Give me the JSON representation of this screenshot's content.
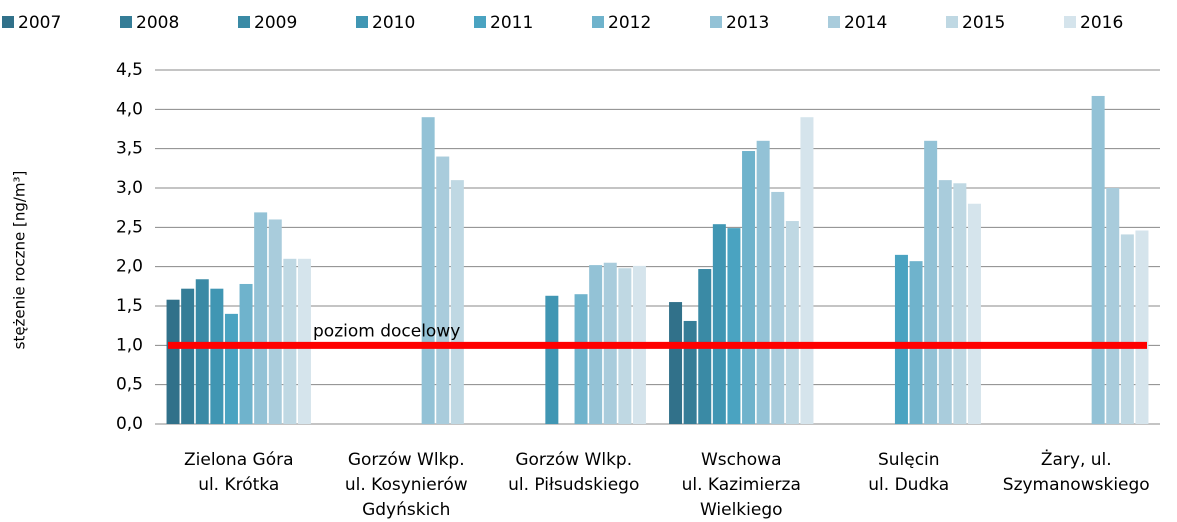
{
  "chart_data": {
    "type": "bar",
    "y_label": "stężenie roczne [ng/m³]",
    "categories": [
      [
        "Zielona Góra",
        "ul. Krótka"
      ],
      [
        "Gorzów Wlkp.",
        "ul. Kosynierów",
        "Gdyńskich"
      ],
      [
        "Gorzów Wlkp.",
        "ul. Piłsudskiego"
      ],
      [
        "Wschowa",
        "ul. Kazimierza",
        "Wielkiego"
      ],
      [
        "Sulęcin",
        "ul. Dudka"
      ],
      [
        "Żary, ul.",
        "Szymanowskiego"
      ]
    ],
    "series": [
      {
        "name": "2007",
        "color": "#31718a",
        "values": [
          1.58,
          null,
          null,
          1.55,
          null,
          null
        ]
      },
      {
        "name": "2008",
        "color": "#357d97",
        "values": [
          1.72,
          null,
          null,
          1.31,
          null,
          null
        ]
      },
      {
        "name": "2009",
        "color": "#3a8aa5",
        "values": [
          1.84,
          null,
          null,
          1.97,
          null,
          null
        ]
      },
      {
        "name": "2010",
        "color": "#4096b3",
        "values": [
          1.72,
          null,
          1.63,
          2.54,
          null,
          null
        ]
      },
      {
        "name": "2011",
        "color": "#4aa3c1",
        "values": [
          1.4,
          null,
          null,
          2.49,
          2.15,
          null
        ]
      },
      {
        "name": "2012",
        "color": "#6fb3cc",
        "values": [
          1.78,
          null,
          1.65,
          3.47,
          2.07,
          null
        ]
      },
      {
        "name": "2013",
        "color": "#93c2d6",
        "values": [
          2.69,
          3.9,
          2.02,
          3.6,
          3.6,
          4.17
        ]
      },
      {
        "name": "2014",
        "color": "#a9ccdc",
        "values": [
          2.6,
          3.4,
          2.05,
          2.95,
          3.1,
          3.0
        ]
      },
      {
        "name": "2015",
        "color": "#bfd8e3",
        "values": [
          2.1,
          3.1,
          1.98,
          2.58,
          3.06,
          2.41
        ]
      },
      {
        "name": "2016",
        "color": "#d5e4ec",
        "values": [
          2.1,
          null,
          2.01,
          3.9,
          2.8,
          2.46
        ]
      }
    ],
    "reference_line": {
      "value": 1.0,
      "label": "poziom docelowy",
      "color": "#ff0000"
    },
    "ylim": [
      0,
      4.5
    ],
    "yticks": [
      {
        "value": 0,
        "label": "0,0"
      },
      {
        "value": 0.5,
        "label": "0,5"
      },
      {
        "value": 1,
        "label": "1,0"
      },
      {
        "value": 1.5,
        "label": "1,5"
      },
      {
        "value": 2,
        "label": "2,0"
      },
      {
        "value": 2.5,
        "label": "2,5"
      },
      {
        "value": 3,
        "label": "3,0"
      },
      {
        "value": 3.5,
        "label": "3,5"
      },
      {
        "value": 4,
        "label": "4,0"
      },
      {
        "value": 4.5,
        "label": "4,5"
      }
    ],
    "grid": true,
    "legend": "top"
  }
}
